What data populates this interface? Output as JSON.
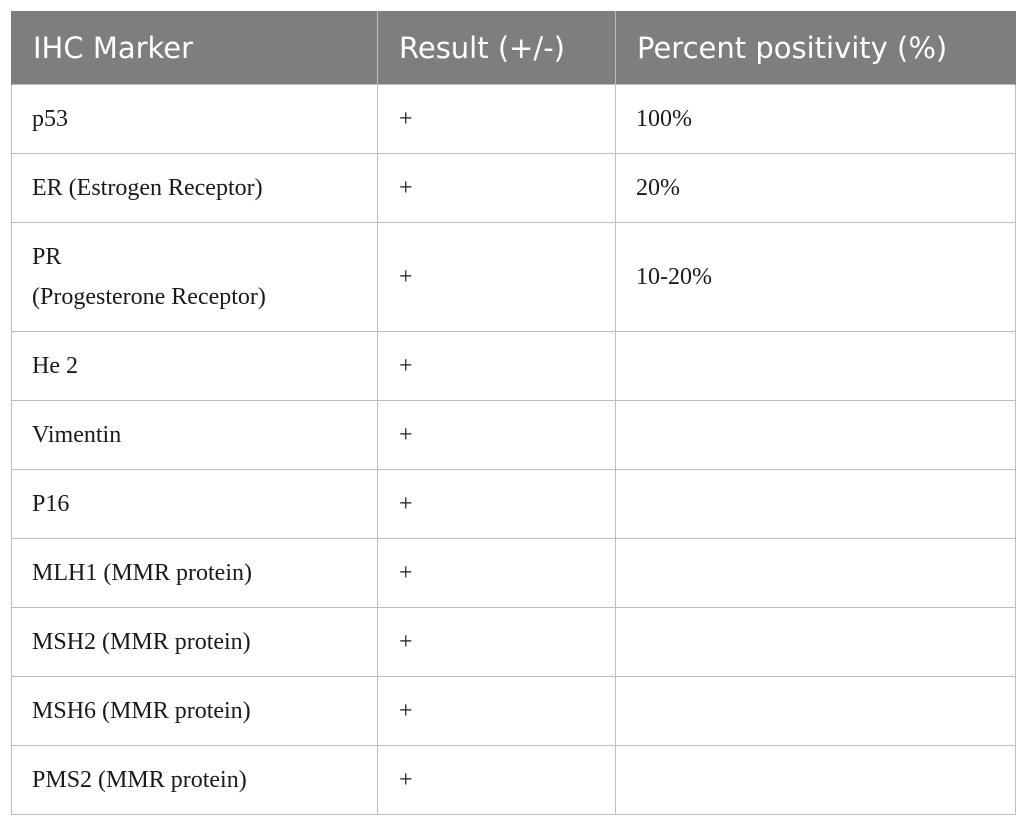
{
  "table": {
    "headers": [
      "IHC Marker",
      "Result (+/-)",
      "Percent positivity (%)"
    ],
    "rows": [
      {
        "marker_line1": "p53",
        "marker_line2": "",
        "result": "+",
        "percent": "100%"
      },
      {
        "marker_line1": "ER (Estrogen Receptor)",
        "marker_line2": "",
        "result": "+",
        "percent": "20%"
      },
      {
        "marker_line1": "PR",
        "marker_line2": "(Progesterone Receptor)",
        "result": "+",
        "percent": "10-20%"
      },
      {
        "marker_line1": "He 2",
        "marker_line2": "",
        "result": "+",
        "percent": ""
      },
      {
        "marker_line1": "Vimentin",
        "marker_line2": "",
        "result": "+",
        "percent": ""
      },
      {
        "marker_line1": "P16",
        "marker_line2": "",
        "result": "+",
        "percent": ""
      },
      {
        "marker_line1": "MLH1 (MMR protein)",
        "marker_line2": "",
        "result": "+",
        "percent": ""
      },
      {
        "marker_line1": "MSH2 (MMR protein)",
        "marker_line2": "",
        "result": "+",
        "percent": ""
      },
      {
        "marker_line1": "MSH6 (MMR protein)",
        "marker_line2": "",
        "result": "+",
        "percent": ""
      },
      {
        "marker_line1": "PMS2 (MMR protein)",
        "marker_line2": "",
        "result": "+",
        "percent": ""
      }
    ]
  },
  "colors": {
    "header_bg": "#7e7e7e",
    "header_text": "#ffffff",
    "grid_line": "#bdbdbd",
    "body_text": "#1a1a1a"
  }
}
